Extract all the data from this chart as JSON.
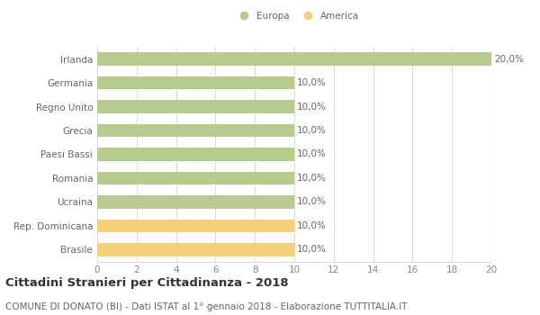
{
  "categories": [
    "Irlanda",
    "Germania",
    "Regno Unito",
    "Grecia",
    "Paesi Bassi",
    "Romania",
    "Ucraina",
    "Rep. Dominicana",
    "Brasile"
  ],
  "values": [
    20.0,
    10.0,
    10.0,
    10.0,
    10.0,
    10.0,
    10.0,
    10.0,
    10.0
  ],
  "colors": [
    "#b5cc8e",
    "#b5cc8e",
    "#b5cc8e",
    "#b5cc8e",
    "#b5cc8e",
    "#b5cc8e",
    "#b5cc8e",
    "#f5d07a",
    "#f5d07a"
  ],
  "labels": [
    "20,0%",
    "10,0%",
    "10,0%",
    "10,0%",
    "10,0%",
    "10,0%",
    "10,0%",
    "10,0%",
    "10,0%"
  ],
  "xlim": [
    0,
    20
  ],
  "xticks": [
    0,
    2,
    4,
    6,
    8,
    10,
    12,
    14,
    16,
    18,
    20
  ],
  "legend_europa_color": "#b5cc8e",
  "legend_america_color": "#f5d07a",
  "legend_europa_label": "Europa",
  "legend_america_label": "America",
  "title": "Cittadini Stranieri per Cittadinanza - 2018",
  "subtitle": "COMUNE DI DONATO (BI) - Dati ISTAT al 1° gennaio 2018 - Elaborazione TUTTITALIA.IT",
  "background_color": "#ffffff",
  "grid_color": "#dddddd",
  "bar_height": 0.55,
  "label_fontsize": 7.5,
  "title_fontsize": 9.5,
  "subtitle_fontsize": 7.5,
  "tick_fontsize": 7.5
}
